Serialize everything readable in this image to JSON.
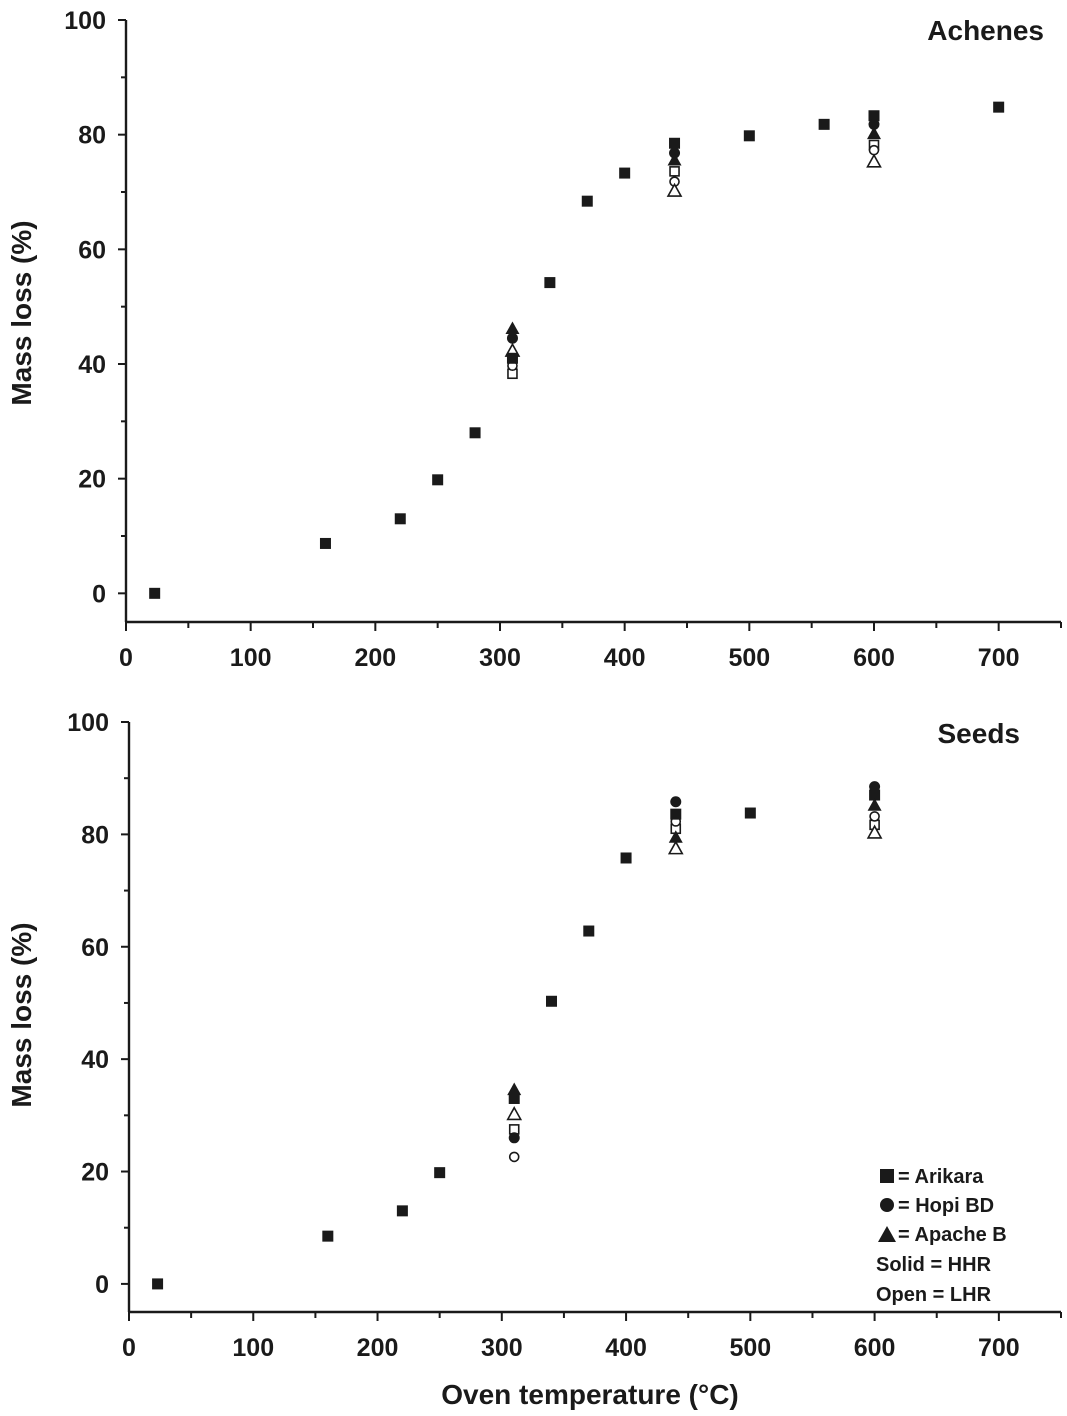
{
  "colors": {
    "ink": "#1a1a1a",
    "background": "#ffffff"
  },
  "x_axis_label": "Oven temperature (°C)",
  "legend": {
    "entries": [
      {
        "marker": "square",
        "label": "= Arikara"
      },
      {
        "marker": "circle",
        "label": "= Hopi BD"
      },
      {
        "marker": "triangle",
        "label": "= Apache B"
      }
    ],
    "notes": [
      "Solid = HHR",
      "Open = LHR"
    ]
  },
  "chart_data": [
    {
      "type": "scatter",
      "title": "Achenes",
      "xlabel": "",
      "ylabel": "Mass loss (%)",
      "xlim": [
        0,
        750
      ],
      "ylim": [
        -5,
        100
      ],
      "xticks": [
        0,
        100,
        200,
        300,
        400,
        500,
        600,
        700
      ],
      "yticks": [
        0,
        20,
        40,
        60,
        80,
        100
      ],
      "grid": false,
      "series": [
        {
          "name": "Arikara HHR",
          "marker": "square",
          "fill": "solid",
          "points": [
            [
              23,
              0
            ],
            [
              160,
              8.7
            ],
            [
              220,
              13
            ],
            [
              250,
              19.8
            ],
            [
              280,
              28
            ],
            [
              310,
              41
            ],
            [
              340,
              54.2
            ],
            [
              370,
              68.4
            ],
            [
              400,
              73.3
            ],
            [
              440,
              78.5
            ],
            [
              500,
              79.8
            ],
            [
              560,
              81.8
            ],
            [
              600,
              83.3
            ],
            [
              700,
              84.8
            ]
          ]
        },
        {
          "name": "Arikara LHR",
          "marker": "square",
          "fill": "open",
          "points": [
            [
              310,
              38.3
            ],
            [
              440,
              73.6
            ],
            [
              600,
              78.2
            ]
          ]
        },
        {
          "name": "Hopi BD HHR",
          "marker": "circle",
          "fill": "solid",
          "points": [
            [
              310,
              44.5
            ],
            [
              440,
              76.8
            ],
            [
              600,
              81.8
            ]
          ]
        },
        {
          "name": "Hopi BD LHR",
          "marker": "circle",
          "fill": "open",
          "points": [
            [
              310,
              39.7
            ],
            [
              440,
              71.8
            ],
            [
              600,
              77.3
            ]
          ]
        },
        {
          "name": "Apache B HHR",
          "marker": "triangle",
          "fill": "solid",
          "points": [
            [
              310,
              46.2
            ],
            [
              440,
              75.6
            ],
            [
              600,
              80.2
            ]
          ]
        },
        {
          "name": "Apache B LHR",
          "marker": "triangle",
          "fill": "open",
          "points": [
            [
              310,
              42.3
            ],
            [
              440,
              70.2
            ],
            [
              600,
              75.3
            ]
          ]
        }
      ]
    },
    {
      "type": "scatter",
      "title": "Seeds",
      "xlabel": "Oven temperature (°C)",
      "ylabel": "Mass loss (%)",
      "xlim": [
        0,
        750
      ],
      "ylim": [
        -5,
        100
      ],
      "xticks": [
        0,
        100,
        200,
        300,
        400,
        500,
        600,
        700
      ],
      "yticks": [
        0,
        20,
        40,
        60,
        80,
        100
      ],
      "grid": false,
      "series": [
        {
          "name": "Arikara HHR",
          "marker": "square",
          "fill": "solid",
          "points": [
            [
              23,
              0
            ],
            [
              160,
              8.5
            ],
            [
              220,
              13
            ],
            [
              250,
              19.8
            ],
            [
              310,
              33
            ],
            [
              340,
              50.3
            ],
            [
              370,
              62.8
            ],
            [
              400,
              75.8
            ],
            [
              440,
              83.6
            ],
            [
              500,
              83.8
            ],
            [
              600,
              87
            ]
          ]
        },
        {
          "name": "Arikara LHR",
          "marker": "square",
          "fill": "open",
          "points": [
            [
              310,
              27.5
            ],
            [
              440,
              81
            ],
            [
              600,
              81.7
            ]
          ]
        },
        {
          "name": "Hopi BD HHR",
          "marker": "circle",
          "fill": "solid",
          "points": [
            [
              310,
              26
            ],
            [
              440,
              85.8
            ],
            [
              600,
              88.5
            ]
          ]
        },
        {
          "name": "Hopi BD LHR",
          "marker": "circle",
          "fill": "open",
          "points": [
            [
              310,
              22.6
            ],
            [
              440,
              82.3
            ],
            [
              600,
              83.2
            ]
          ]
        },
        {
          "name": "Apache B HHR",
          "marker": "triangle",
          "fill": "solid",
          "points": [
            [
              310,
              34.6
            ],
            [
              440,
              79.5
            ],
            [
              600,
              85.2
            ]
          ]
        },
        {
          "name": "Apache B LHR",
          "marker": "triangle",
          "fill": "open",
          "points": [
            [
              310,
              30.2
            ],
            [
              440,
              77.5
            ],
            [
              600,
              80.3
            ]
          ]
        }
      ],
      "legend_placement": "bottom-right"
    }
  ]
}
